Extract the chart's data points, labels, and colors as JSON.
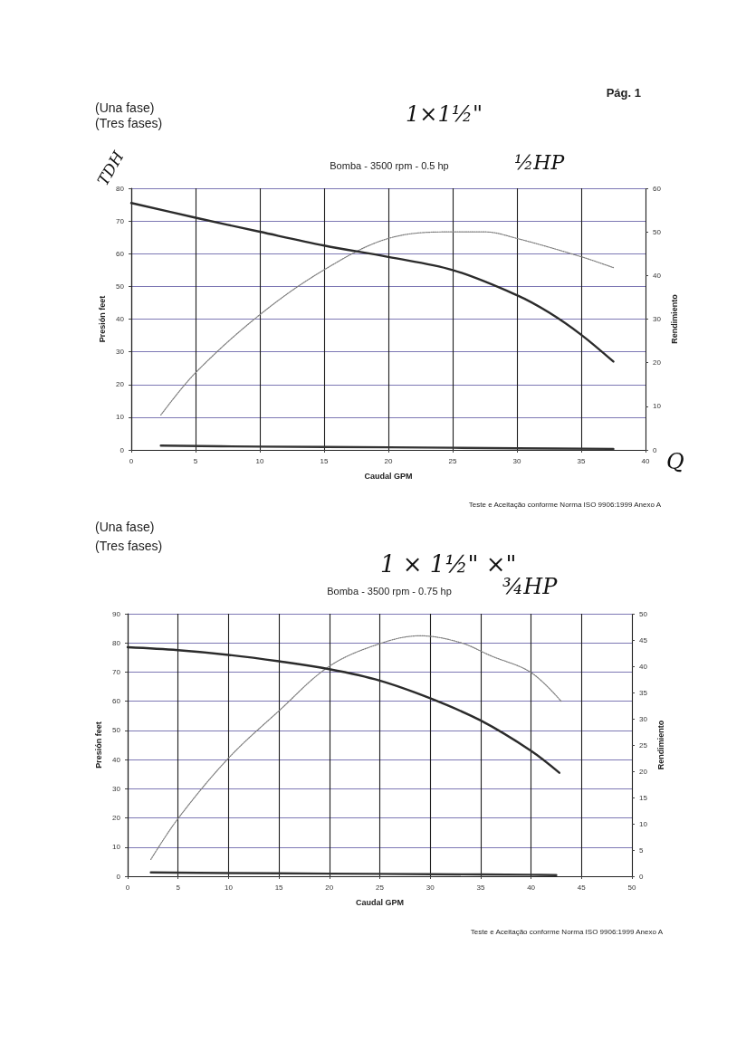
{
  "chart_data": [
    {
      "type": "line",
      "title": "Bomba - 3500 rpm - 0.5 hp",
      "xlabel": "Caudal GPM",
      "ylabel": "Presión feet",
      "y2label": "Rendimiento",
      "annotations": [
        "Pág. 1",
        "(Una fase)",
        "(Tres fases)",
        "1×1½\"",
        "TDH",
        "½HP",
        "Q",
        "Teste e Aceitação conforme Norma ISO 9906:1999 Anexo A"
      ],
      "xlim": [
        0,
        40
      ],
      "xticks": [
        0,
        5,
        10,
        15,
        20,
        25,
        30,
        35,
        40
      ],
      "ylim": [
        0,
        80
      ],
      "yticks": [
        0,
        10,
        20,
        30,
        40,
        50,
        60,
        70,
        80
      ],
      "y2lim": [
        0,
        60
      ],
      "y2ticks": [
        0,
        10,
        20,
        30,
        40,
        50,
        60
      ],
      "grid": true,
      "series": [
        {
          "color": "#2b2b2b",
          "x": [
            0,
            5,
            10,
            15,
            20,
            25,
            30,
            32.5,
            35,
            37.5
          ],
          "values": [
            75.5,
            71,
            66.7,
            62.5,
            59,
            55,
            47.3,
            42,
            35.2,
            27
          ]
        },
        {
          "color": "#7a7a7a",
          "axis": "y2",
          "line_style": "dotted",
          "x": [
            2.3,
            5,
            10,
            15,
            20,
            25,
            27.5,
            30,
            35,
            37.5
          ],
          "values": [
            8,
            17.7,
            31,
            41.3,
            48.5,
            50,
            50,
            48.5,
            44.3,
            41.8
          ]
        },
        {
          "color": "#333333",
          "x": [
            2.3,
            10,
            20,
            30,
            37.5
          ],
          "values": [
            1.3,
            1,
            0.8,
            0.5,
            0.3
          ]
        }
      ]
    },
    {
      "type": "line",
      "title": "Bomba - 3500 rpm - 0.75 hp",
      "xlabel": "Caudal GPM",
      "ylabel": "Presión feet",
      "y2label": "Rendimiento",
      "annotations": [
        "(Una fase)",
        "(Tres fases)",
        "1 × 1½\" ×\"",
        "¾HP",
        "Teste e Aceitação conforme Norma ISO 9906:1999 Anexo A"
      ],
      "xlim": [
        0,
        50
      ],
      "xticks": [
        0,
        5,
        10,
        15,
        20,
        25,
        30,
        35,
        40,
        45,
        50
      ],
      "ylim": [
        0,
        90
      ],
      "yticks": [
        0,
        10,
        20,
        30,
        40,
        50,
        60,
        70,
        80,
        90
      ],
      "y2lim": [
        0,
        50
      ],
      "y2ticks": [
        0,
        5,
        10,
        15,
        20,
        25,
        30,
        35,
        40,
        45,
        50
      ],
      "grid": true,
      "series": [
        {
          "color": "#2b2b2b",
          "x": [
            0,
            5,
            10,
            15,
            20,
            25,
            30,
            35,
            40,
            42.8
          ],
          "values": [
            78.5,
            77.5,
            75.9,
            73.7,
            71,
            67.1,
            61,
            53.4,
            43,
            35.5
          ]
        },
        {
          "color": "#7a7a7a",
          "axis": "y2",
          "line_style": "dotted",
          "x": [
            2.3,
            5,
            10,
            15,
            20,
            25,
            29,
            33,
            36,
            40,
            43
          ],
          "values": [
            3.2,
            11,
            22.5,
            31.5,
            40,
            44.3,
            45.8,
            44.5,
            42,
            38.8,
            33.3
          ]
        },
        {
          "color": "#333333",
          "x": [
            2.3,
            10,
            20,
            30,
            40,
            42.5
          ],
          "values": [
            1.3,
            1.1,
            0.9,
            0.7,
            0.5,
            0.4
          ]
        }
      ]
    }
  ]
}
